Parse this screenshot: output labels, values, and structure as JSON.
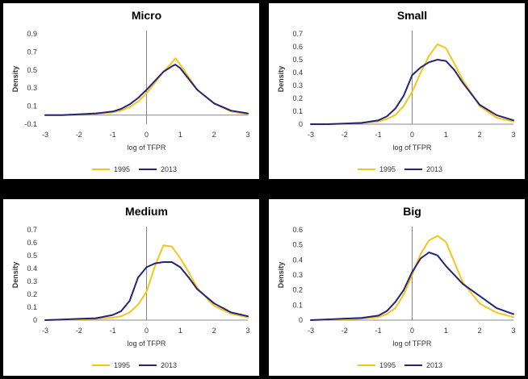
{
  "colors": {
    "series_1995": "#F5C518",
    "series_2013": "#22247A",
    "axis": "#888888"
  },
  "chart_data": [
    {
      "type": "line",
      "title": "Micro",
      "xlabel": "log of TFPR",
      "ylabel": "Density",
      "xlim": [
        -3,
        3
      ],
      "ylim": [
        -0.1,
        0.9
      ],
      "xticks": [
        "-3",
        "-2",
        "-1",
        "0",
        "1",
        "2",
        "3"
      ],
      "yticks": [
        "0.9",
        "0.7",
        "0.5",
        "0.3",
        "0.1",
        "-0.1"
      ],
      "x": [
        -3,
        -2.5,
        -2,
        -1.5,
        -1,
        -0.75,
        -0.5,
        -0.25,
        0,
        0.25,
        0.5,
        0.75,
        0.85,
        1,
        1.25,
        1.5,
        2,
        2.5,
        3
      ],
      "series": [
        {
          "name": "1995",
          "values": [
            0.0,
            0.0,
            0.01,
            0.015,
            0.03,
            0.05,
            0.09,
            0.15,
            0.24,
            0.36,
            0.48,
            0.58,
            0.63,
            0.56,
            0.42,
            0.28,
            0.13,
            0.04,
            0.01
          ]
        },
        {
          "name": "2013",
          "values": [
            0.0,
            0.0,
            0.01,
            0.02,
            0.04,
            0.07,
            0.12,
            0.19,
            0.28,
            0.38,
            0.48,
            0.54,
            0.56,
            0.52,
            0.4,
            0.28,
            0.13,
            0.05,
            0.02
          ]
        }
      ]
    },
    {
      "type": "line",
      "title": "Small",
      "xlabel": "log of TFPR",
      "ylabel": "Density",
      "xlim": [
        -3,
        3
      ],
      "ylim": [
        0,
        0.7
      ],
      "xticks": [
        "-3",
        "-2",
        "-1",
        "0",
        "1",
        "2",
        "3"
      ],
      "yticks": [
        "0.7",
        "0.6",
        "0.5",
        "0.4",
        "0.3",
        "0.2",
        "0.1",
        "0"
      ],
      "x": [
        -3,
        -2.5,
        -2,
        -1.5,
        -1,
        -0.75,
        -0.5,
        -0.25,
        0,
        0.25,
        0.5,
        0.75,
        1,
        1.25,
        1.5,
        2,
        2.5,
        3
      ],
      "series": [
        {
          "name": "1995",
          "values": [
            0.0,
            0.0,
            0.005,
            0.01,
            0.02,
            0.04,
            0.07,
            0.14,
            0.25,
            0.4,
            0.53,
            0.62,
            0.59,
            0.47,
            0.34,
            0.14,
            0.05,
            0.02
          ]
        },
        {
          "name": "2013",
          "values": [
            0.0,
            0.0,
            0.005,
            0.01,
            0.03,
            0.06,
            0.12,
            0.22,
            0.38,
            0.44,
            0.48,
            0.5,
            0.49,
            0.42,
            0.32,
            0.15,
            0.07,
            0.03
          ]
        }
      ]
    },
    {
      "type": "line",
      "title": "Medium",
      "xlabel": "log of TFPR",
      "ylabel": "Density",
      "xlim": [
        -3,
        3
      ],
      "ylim": [
        0,
        0.7
      ],
      "xticks": [
        "-3",
        "-2",
        "-1",
        "0",
        "1",
        "2",
        "3"
      ],
      "yticks": [
        "0.7",
        "0.6",
        "0.5",
        "0.4",
        "0.3",
        "0.2",
        "0.1",
        "0"
      ],
      "x": [
        -3,
        -2.5,
        -2,
        -1.5,
        -1,
        -0.75,
        -0.5,
        -0.25,
        0,
        0.25,
        0.5,
        0.75,
        1,
        1.25,
        1.5,
        2,
        2.5,
        3
      ],
      "series": [
        {
          "name": "1995",
          "values": [
            0.0,
            0.005,
            0.005,
            0.01,
            0.02,
            0.03,
            0.06,
            0.12,
            0.22,
            0.42,
            0.58,
            0.57,
            0.48,
            0.37,
            0.25,
            0.11,
            0.05,
            0.02
          ]
        },
        {
          "name": "2013",
          "values": [
            0.0,
            0.005,
            0.01,
            0.015,
            0.04,
            0.07,
            0.15,
            0.33,
            0.41,
            0.44,
            0.45,
            0.45,
            0.41,
            0.33,
            0.24,
            0.13,
            0.06,
            0.03
          ]
        }
      ]
    },
    {
      "type": "line",
      "title": "Big",
      "xlabel": "log of TFPR",
      "ylabel": "Density",
      "xlim": [
        -3,
        3
      ],
      "ylim": [
        0,
        0.6
      ],
      "xticks": [
        "-3",
        "-2",
        "-1",
        "0",
        "1",
        "2",
        "3"
      ],
      "yticks": [
        "0.6",
        "0.5",
        "0.4",
        "0.3",
        "0.2",
        "0.1",
        "0"
      ],
      "x": [
        -3,
        -2.5,
        -2,
        -1.5,
        -1,
        -0.75,
        -0.5,
        -0.25,
        0,
        0.25,
        0.5,
        0.75,
        1,
        1.5,
        2,
        2.5,
        3
      ],
      "series": [
        {
          "name": "1995",
          "values": [
            0.0,
            0.005,
            0.005,
            0.01,
            0.02,
            0.04,
            0.08,
            0.17,
            0.3,
            0.44,
            0.53,
            0.56,
            0.52,
            0.25,
            0.11,
            0.05,
            0.02
          ]
        },
        {
          "name": "2013",
          "values": [
            0.0,
            0.005,
            0.01,
            0.015,
            0.03,
            0.06,
            0.12,
            0.2,
            0.32,
            0.41,
            0.45,
            0.43,
            0.36,
            0.24,
            0.16,
            0.08,
            0.04
          ]
        }
      ]
    }
  ]
}
